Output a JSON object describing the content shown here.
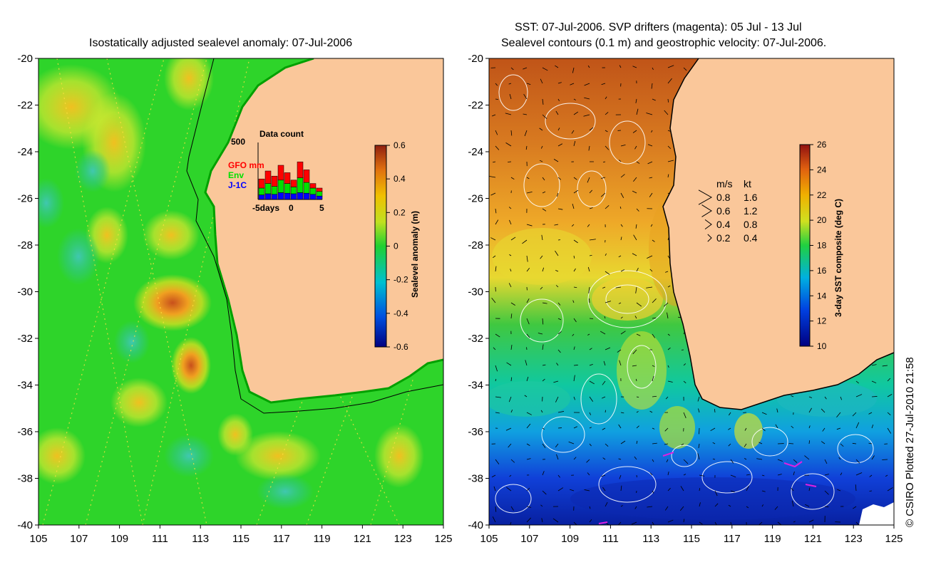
{
  "left_panel": {
    "title": "Isostatically adjusted sealevel anomaly: 07-Jul-2006",
    "colorbar": {
      "label": "Sealevel anomaly (m)",
      "ticks": [
        "0.6",
        "0.4",
        "0.2",
        "0",
        "-0.2",
        "-0.4",
        "-0.6"
      ],
      "range": [
        -0.6,
        0.6
      ]
    },
    "inset": {
      "title": "Data count",
      "ymax_label": "500",
      "x_ticks": [
        "-5days",
        "0",
        "5"
      ],
      "legend": [
        {
          "label": "GFO mm",
          "color": "#ff0000"
        },
        {
          "label": "Env",
          "color": "#00e000"
        },
        {
          "label": "J-1C",
          "color": "#0000ff"
        }
      ],
      "bars": [
        {
          "day": -5,
          "j1": 40,
          "env": 60,
          "gfo": 80
        },
        {
          "day": -4,
          "j1": 50,
          "env": 90,
          "gfo": 110
        },
        {
          "day": -3,
          "j1": 45,
          "env": 70,
          "gfo": 90
        },
        {
          "day": -2,
          "j1": 60,
          "env": 110,
          "gfo": 130
        },
        {
          "day": -1,
          "j1": 55,
          "env": 85,
          "gfo": 95
        },
        {
          "day": 0,
          "j1": 50,
          "env": 60,
          "gfo": 60
        },
        {
          "day": 1,
          "j1": 60,
          "env": 130,
          "gfo": 140
        },
        {
          "day": 2,
          "j1": 55,
          "env": 95,
          "gfo": 110
        },
        {
          "day": 3,
          "j1": 45,
          "env": 55,
          "gfo": 40
        },
        {
          "day": 4,
          "j1": 30,
          "env": 40,
          "gfo": 30
        }
      ],
      "bar_max": 500
    }
  },
  "right_panel": {
    "title_line1": "SST: 07-Jul-2006. SVP drifters (magenta): 05 Jul - 13 Jul",
    "title_line2": "Sealevel contours (0.1 m) and geostrophic velocity: 07-Jul-2006.",
    "colorbar": {
      "label": "3-day SST composite (deg C)",
      "ticks": [
        "26",
        "24",
        "22",
        "20",
        "18",
        "16",
        "14",
        "12",
        "10"
      ],
      "range": [
        10,
        26
      ]
    },
    "velocity_legend": {
      "header_ms": "m/s",
      "header_kt": "kt",
      "rows": [
        {
          "ms": "0.8",
          "kt": "1.6"
        },
        {
          "ms": "0.6",
          "kt": "1.2"
        },
        {
          "ms": "0.4",
          "kt": "0.8"
        },
        {
          "ms": "0.2",
          "kt": "0.4"
        }
      ]
    }
  },
  "axes": {
    "lat_ticks": [
      "-20",
      "-22",
      "-24",
      "-26",
      "-28",
      "-30",
      "-32",
      "-34",
      "-36",
      "-38",
      "-40"
    ],
    "lon_ticks": [
      "105",
      "107",
      "109",
      "111",
      "113",
      "115",
      "117",
      "119",
      "121",
      "123",
      "125"
    ],
    "lat_range": [
      -40,
      -20
    ],
    "lon_range": [
      105,
      125
    ]
  },
  "credit": "© CSIRO Plotted 27-Jul-2010 21:58",
  "colors": {
    "land": "#fac79a",
    "sla_background": "#2ed42a",
    "sst_warm": "#c8641e",
    "sst_cold": "#1430c8"
  }
}
